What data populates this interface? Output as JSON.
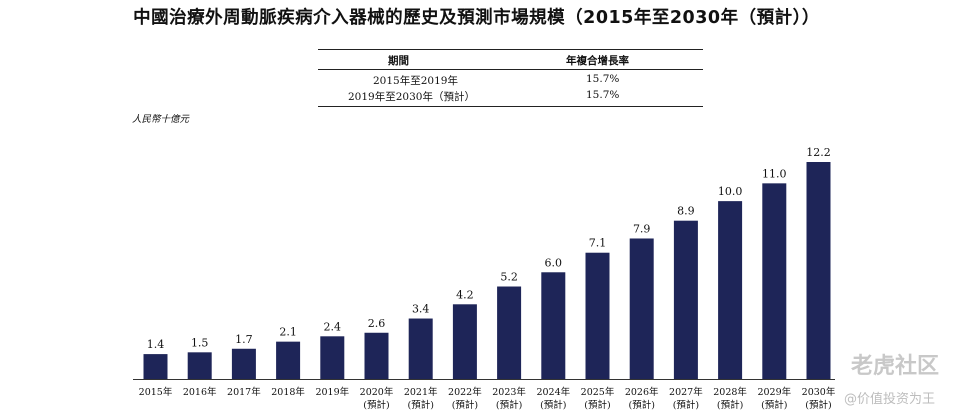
{
  "title": "中國治療外周動脈疾病介入器械的歷史及預測市場規模（2015年至2030年（預計））",
  "cagr_table": {
    "headers": [
      "期間",
      "年複合增長率"
    ],
    "rows": [
      {
        "period": "2015年至2019年",
        "rate": "15.7%"
      },
      {
        "period": "2019年至2030年（預計）",
        "rate": "15.7%"
      }
    ]
  },
  "unit_label": "人民幣十億元",
  "watermark": {
    "brand": "老虎社区",
    "sub": "@价值投资为王"
  },
  "colors": {
    "bar": "#1e2558",
    "text": "#111111"
  },
  "chart_data": {
    "type": "bar",
    "title": "中國治療外周動脈疾病介入器械的歷史及預測市場規模（2015年至2030年（預計））",
    "ylabel": "人民幣十億元",
    "categories": [
      "2015年",
      "2016年",
      "2017年",
      "2018年",
      "2019年",
      "2020年",
      "2021年",
      "2022年",
      "2023年",
      "2024年",
      "2025年",
      "2026年",
      "2027年",
      "2028年",
      "2029年",
      "2030年"
    ],
    "category_notes": [
      "",
      "",
      "",
      "",
      "",
      "(預計)",
      "(預計)",
      "(預計)",
      "(預計)",
      "(預計)",
      "(預計)",
      "(預計)",
      "(預計)",
      "(預計)",
      "(預計)",
      "(預計)"
    ],
    "values": [
      1.4,
      1.5,
      1.7,
      2.1,
      2.4,
      2.6,
      3.4,
      4.2,
      5.2,
      6.0,
      7.1,
      7.9,
      8.9,
      10.0,
      11.0,
      12.2
    ],
    "value_labels": [
      "1.4",
      "1.5",
      "1.7",
      "2.1",
      "2.4",
      "2.6",
      "3.4",
      "4.2",
      "5.2",
      "6.0",
      "7.1",
      "7.9",
      "8.9",
      "10.0",
      "11.0",
      "12.2"
    ],
    "ylim": [
      0,
      12.2
    ],
    "grid": false,
    "legend": "none"
  }
}
